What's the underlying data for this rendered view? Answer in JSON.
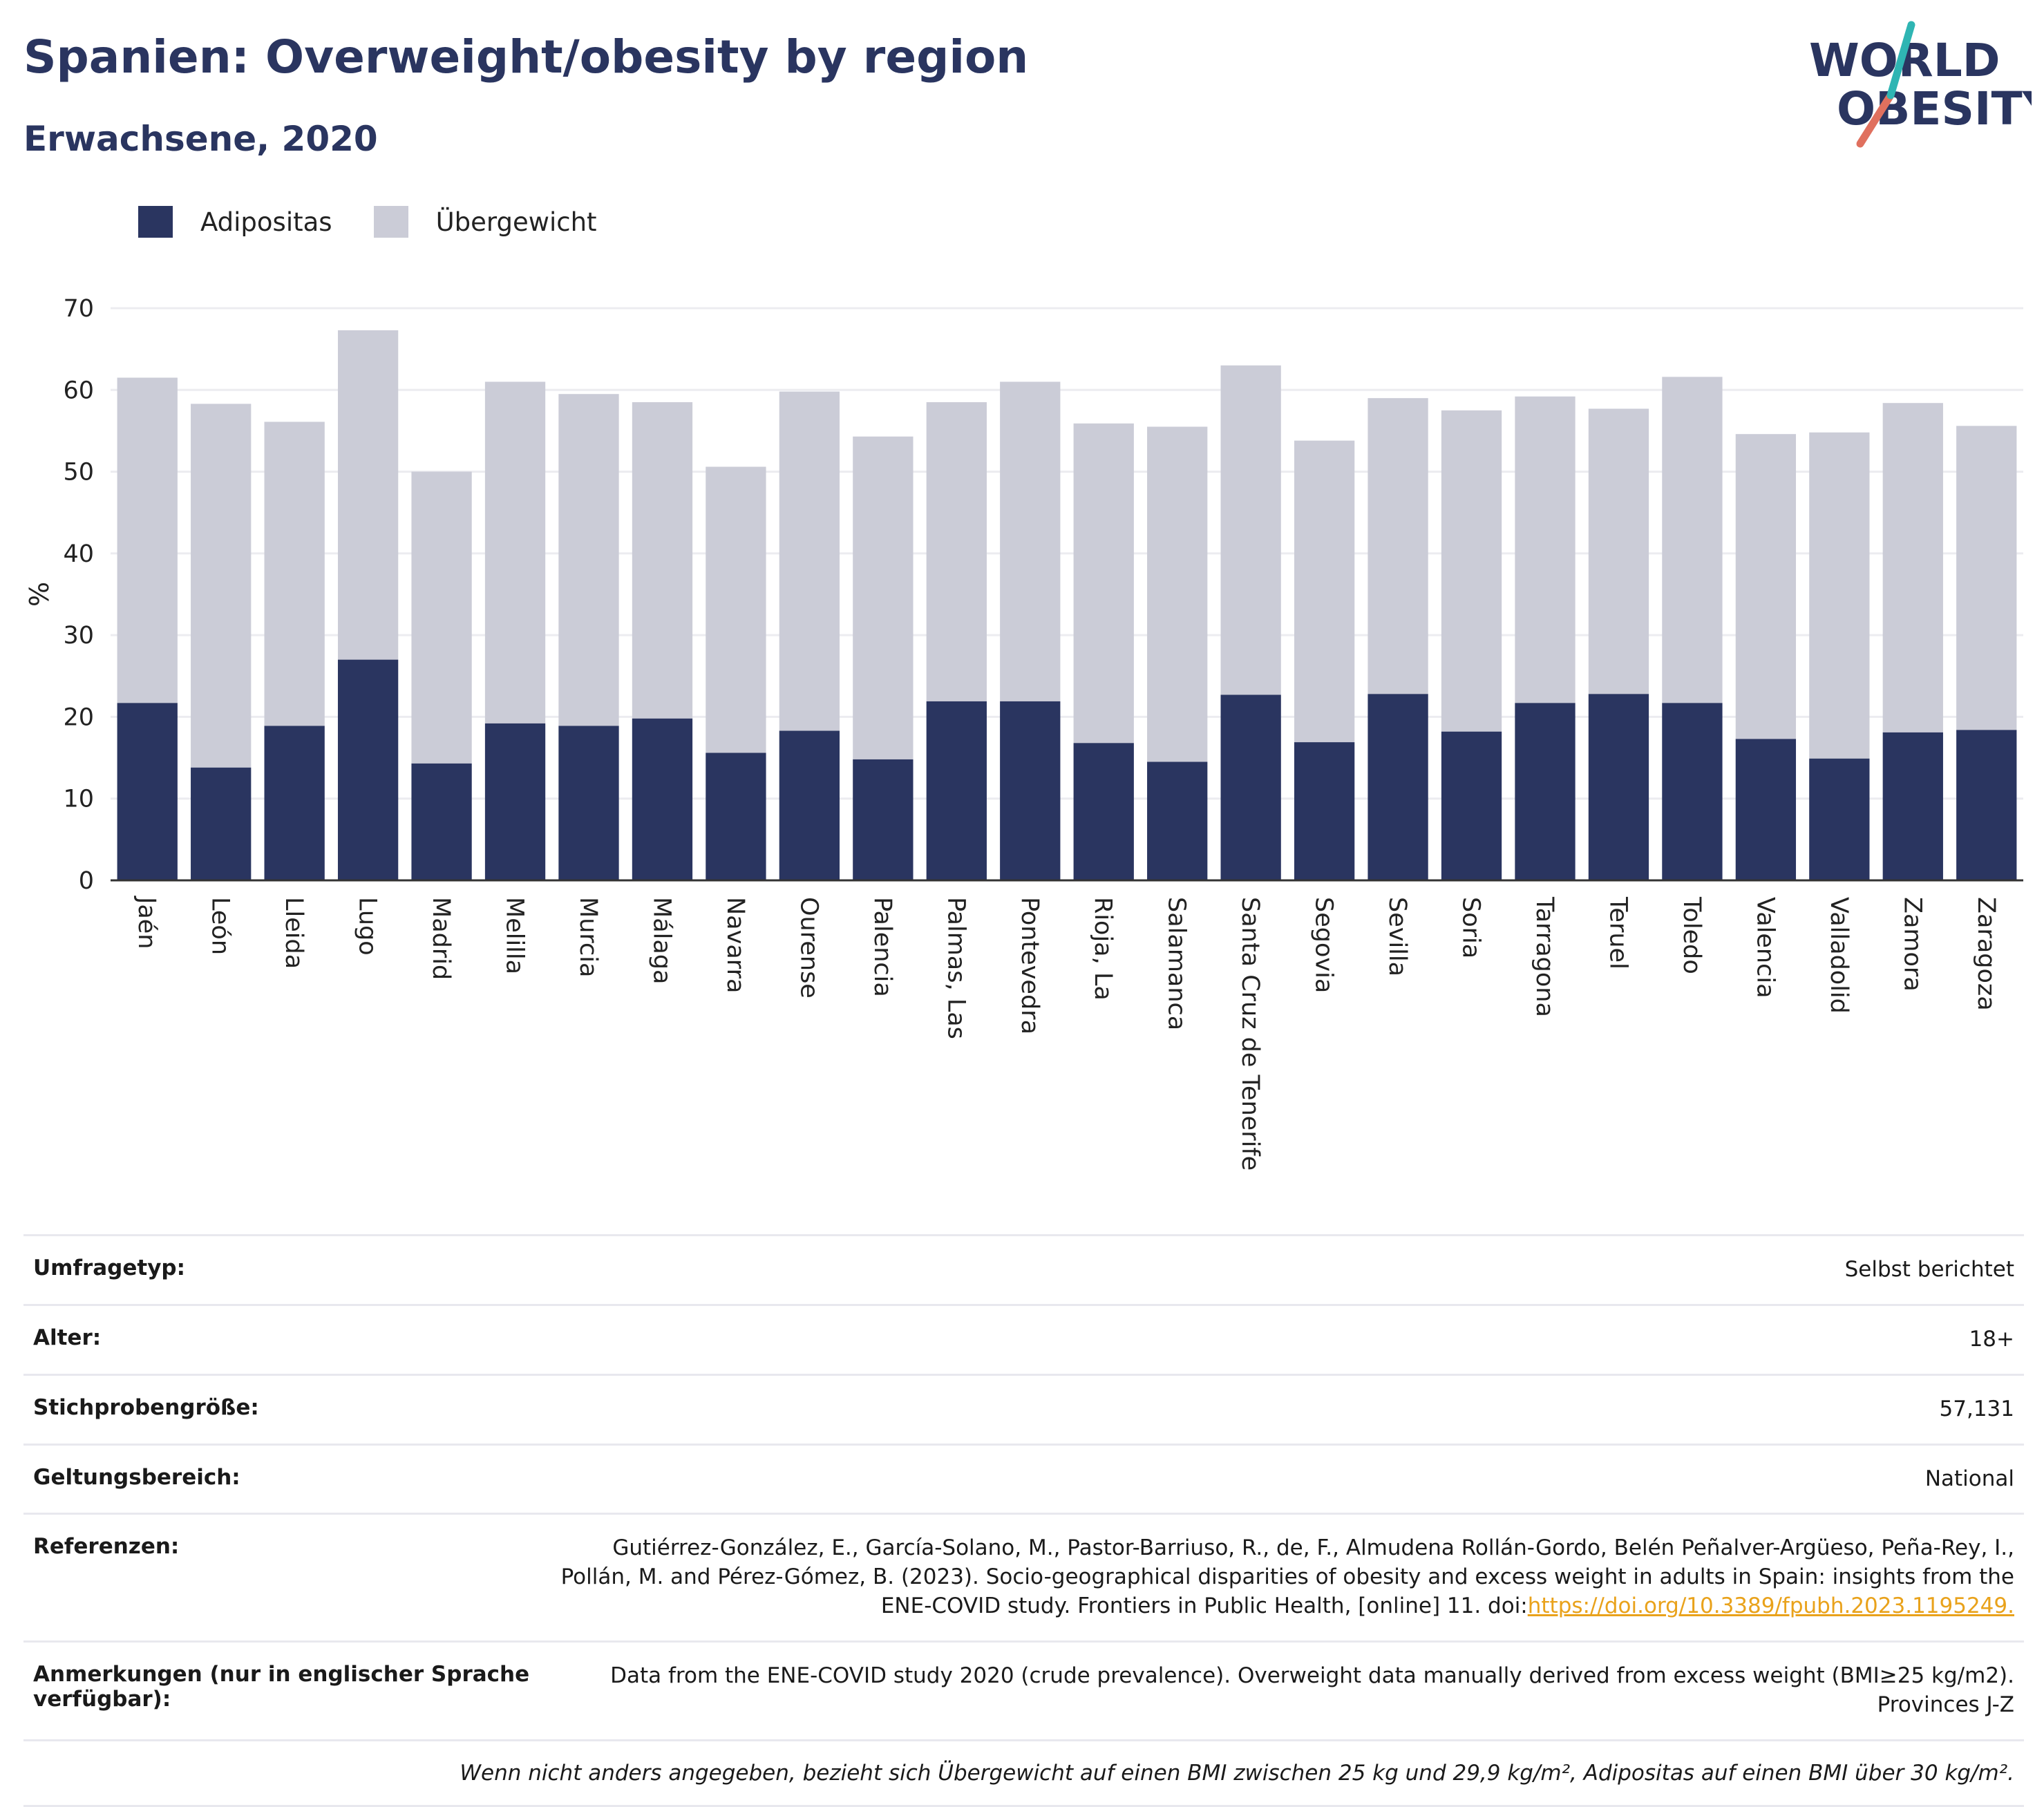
{
  "title": "Spanien: Overweight/obesity by region",
  "subtitle": "Erwachsene, 2020",
  "logo": {
    "line1": "WORLD",
    "line2": "OBESITY"
  },
  "colors": {
    "obesity": "#2a3560",
    "overweight": "#cbccd7",
    "title": "#2a3560",
    "link": "#e9a21b"
  },
  "chart_data": {
    "type": "bar",
    "stacked": true,
    "ylabel": "%",
    "xlabel": "",
    "ylim": [
      0,
      70
    ],
    "yticks": [
      0,
      10,
      20,
      30,
      40,
      50,
      60,
      70
    ],
    "grid": true,
    "legend_position": "top-left",
    "categories": [
      "Jaén",
      "León",
      "Lleida",
      "Lugo",
      "Madrid",
      "Melilla",
      "Murcia",
      "Málaga",
      "Navarra",
      "Ourense",
      "Palencia",
      "Palmas, Las",
      "Pontevedra",
      "Rioja, La",
      "Salamanca",
      "Santa Cruz de Tenerife",
      "Segovia",
      "Sevilla",
      "Soria",
      "Tarragona",
      "Teruel",
      "Toledo",
      "Valencia",
      "Valladolid",
      "Zamora",
      "Zaragoza"
    ],
    "series": [
      {
        "name": "Adipositas",
        "values": [
          21.7,
          13.8,
          18.9,
          27.0,
          14.3,
          19.2,
          18.9,
          19.8,
          15.6,
          18.3,
          14.8,
          21.9,
          21.9,
          16.8,
          14.5,
          22.7,
          16.9,
          22.8,
          18.2,
          21.7,
          22.8,
          21.7,
          17.3,
          14.9,
          18.1,
          18.4
        ]
      },
      {
        "name": "Übergewicht",
        "values": [
          39.8,
          44.5,
          37.2,
          40.3,
          35.7,
          41.8,
          40.6,
          38.7,
          35.0,
          41.5,
          39.5,
          36.6,
          39.1,
          39.1,
          41.0,
          40.3,
          36.9,
          36.2,
          39.3,
          37.5,
          34.9,
          39.9,
          37.3,
          39.9,
          40.3,
          37.2
        ]
      }
    ]
  },
  "info": {
    "survey_type": {
      "label": "Umfragetyp:",
      "value": "Selbst berichtet"
    },
    "age": {
      "label": "Alter:",
      "value": "18+"
    },
    "sample_size": {
      "label": "Stichprobengröße:",
      "value": "57,131"
    },
    "scope": {
      "label": "Geltungsbereich:",
      "value": "National"
    },
    "references": {
      "label": "Referenzen:",
      "line1": "Gutiérrez-González, E., García-Solano, M., Pastor-Barriuso, R., de, F., Almudena Rollán-Gordo, Belén Peñalver-Argüeso, Peña-Rey, I.,",
      "line2": "Pollán, M. and Pérez-Gómez, B. (2023). Socio-geographical disparities of obesity and excess weight in adults in Spain: insights from the",
      "line3": "ENE-COVID study. Frontiers in Public Health, [online] 11. doi:",
      "link": "https://doi.org/10.3389/fpubh.2023.1195249."
    },
    "notes": {
      "label": "Anmerkungen (nur in englischer Sprache verfügbar):",
      "line1": "Data from the ENE-COVID study 2020 (crude prevalence). Overweight data manually derived from excess weight (BMI≥25 kg/m2).",
      "line2": "Provinces J-Z"
    },
    "footnote": "Wenn nicht anders angegeben, bezieht sich Übergewicht auf einen BMI zwischen 25 kg und 29,9 kg/m², Adipositas auf einen BMI über 30 kg/m²."
  }
}
